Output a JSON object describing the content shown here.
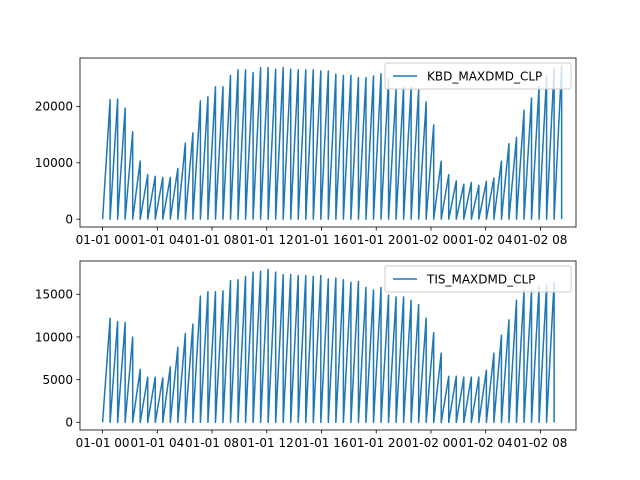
{
  "figure": {
    "background": "#ffffff"
  },
  "chart_data": [
    {
      "type": "line",
      "series": [
        {
          "name": "KBD_MAXDMD_CLP",
          "color": "#1f77b4",
          "peaks": [
            21200,
            21300,
            19700,
            15500,
            10300,
            7900,
            7600,
            7400,
            7400,
            9000,
            13500,
            15300,
            21000,
            21700,
            23500,
            23500,
            25500,
            26500,
            26500,
            26000,
            26900,
            26900,
            26600,
            26900,
            26600,
            26500,
            26500,
            26500,
            26300,
            26300,
            25700,
            25500,
            25500,
            25100,
            25100,
            25400,
            25800,
            24800,
            23200,
            23400,
            23400,
            23000,
            20800,
            16700,
            10300,
            7900,
            6800,
            6200,
            6500,
            6000,
            6700,
            7300,
            10300,
            13400,
            14500,
            19300,
            21500,
            23600,
            25300,
            26700,
            27200
          ]
        }
      ],
      "x": {
        "start": "2012-01-01 00:00",
        "end": "2012-01-02 08:00",
        "step_minutes": 15
      },
      "xticks": [
        "01-01 00",
        "01-01 04",
        "01-01 08",
        "01-01 12",
        "01-01 16",
        "01-01 20",
        "01-02 00",
        "01-02 04",
        "01-02 08"
      ],
      "yticks": [
        0,
        10000,
        20000
      ],
      "ylim": [
        -1390,
        28590
      ],
      "xlim_hours": [
        -1.65,
        34.6
      ],
      "legend": {
        "placement": "upper right",
        "label": "KBD_MAXDMD_CLP"
      }
    },
    {
      "type": "line",
      "series": [
        {
          "name": "TIS_MAXDMD_CLP",
          "color": "#1f77b4",
          "peaks": [
            12200,
            11800,
            11700,
            10000,
            6200,
            5300,
            5300,
            5200,
            6500,
            8800,
            10400,
            11500,
            14800,
            15300,
            15300,
            15400,
            16600,
            16700,
            17100,
            17600,
            17700,
            17900,
            17600,
            17300,
            17300,
            17200,
            17200,
            17100,
            17200,
            16800,
            16900,
            16700,
            16400,
            16500,
            15800,
            15500,
            15800,
            14900,
            14700,
            14700,
            14300,
            13800,
            12200,
            10500,
            8100,
            5400,
            5400,
            5300,
            5300,
            5300,
            6100,
            8100,
            10200,
            12000,
            14300,
            15500,
            15500,
            16000,
            16100,
            16400
          ]
        }
      ],
      "x": {
        "start": "2012-01-01 00:00",
        "end": "2012-01-02 08:00",
        "step_minutes": 15
      },
      "xticks": [
        "01-01 00",
        "01-01 04",
        "01-01 08",
        "01-01 12",
        "01-01 16",
        "01-01 20",
        "01-02 00",
        "01-02 04",
        "01-02 08"
      ],
      "yticks": [
        0,
        5000,
        10000,
        15000
      ],
      "ylim": [
        -900,
        18900
      ],
      "xlim_hours": [
        -1.65,
        34.6
      ],
      "legend": {
        "placement": "upper right",
        "label": "TIS_MAXDMD_CLP"
      }
    }
  ]
}
